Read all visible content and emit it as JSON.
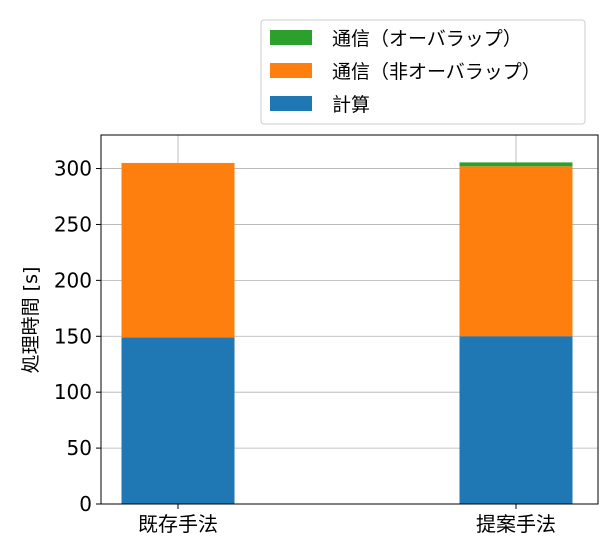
{
  "chart_data": {
    "type": "bar",
    "stacked": true,
    "categories": [
      "既存手法",
      "提案手法"
    ],
    "series": [
      {
        "name": "計算",
        "values": [
          149,
          150
        ],
        "color": "#1f77b4"
      },
      {
        "name": "通信（非オーバラップ）",
        "values": [
          156,
          152
        ],
        "color": "#ff7f0e"
      },
      {
        "name": "通信（オーバラップ）",
        "values": [
          0,
          3.5
        ],
        "color": "#2ca02c"
      }
    ],
    "legend_order": [
      "通信（オーバラップ）",
      "通信（非オーバラップ）",
      "計算"
    ],
    "legend_placement": "above-top-right",
    "xlabel": "",
    "ylabel": "処理時間 [s]",
    "ylim": [
      0,
      330
    ],
    "yticks": [
      0,
      50,
      100,
      150,
      200,
      250,
      300
    ],
    "grid": true
  }
}
